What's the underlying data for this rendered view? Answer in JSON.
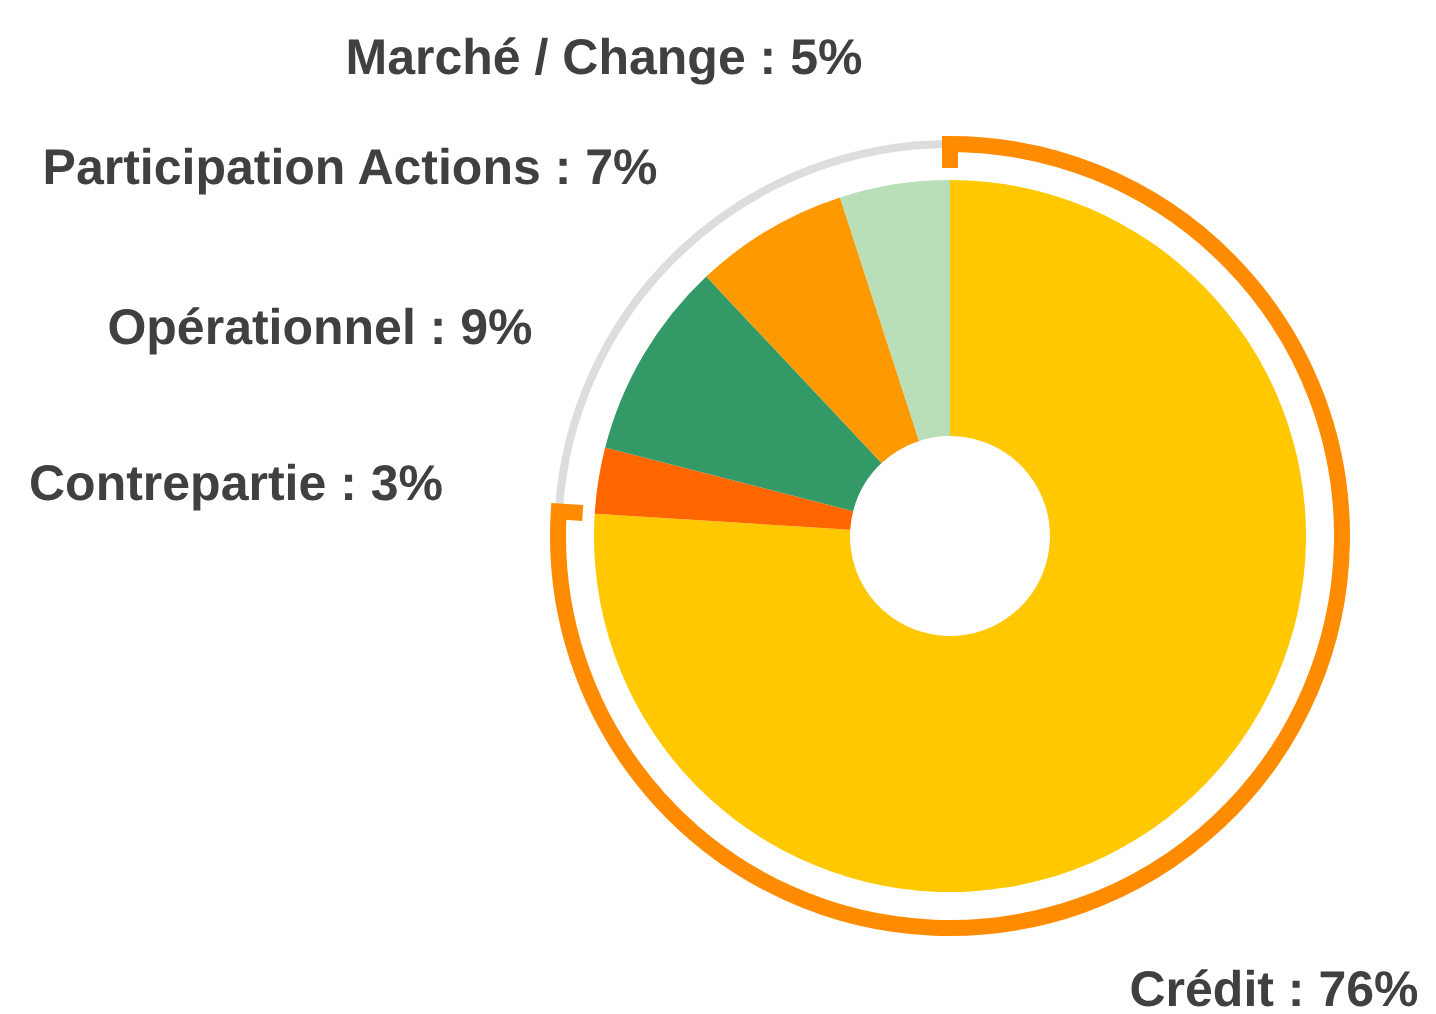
{
  "chart_data": {
    "type": "donut",
    "categories": [
      "Crédit : 76%",
      "Contrepartie : 3%",
      "Opérationnel : 9%",
      "Participation Actions : 7%",
      "Marché / Change : 5%"
    ],
    "values": [
      76,
      3,
      9,
      7,
      5
    ],
    "colors": [
      "#ffc800",
      "#ff6600",
      "#339966",
      "#ff9900",
      "#b8dfb8"
    ]
  }
}
